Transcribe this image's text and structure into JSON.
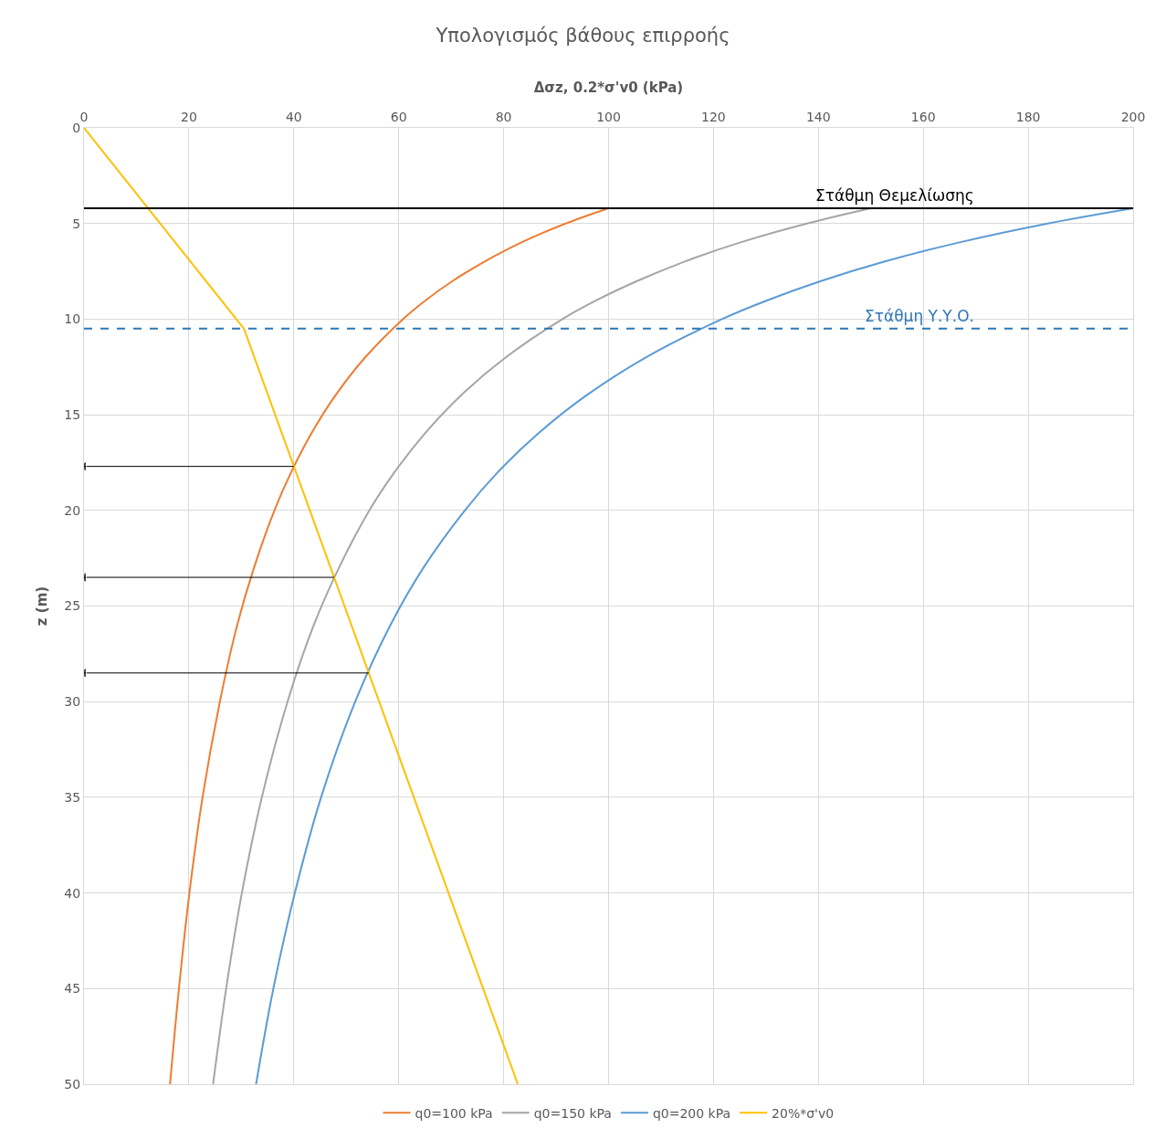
{
  "chart_data": {
    "type": "line",
    "title": "Υπολογισμός βάθους επιρροής",
    "xlabel": "Δσz, 0.2*σ'v0 (kPa)",
    "ylabel": "z (m)",
    "xlim": [
      0,
      200
    ],
    "xticks": [
      0,
      20,
      40,
      60,
      80,
      100,
      120,
      140,
      160,
      180,
      200
    ],
    "ylim": [
      50,
      0
    ],
    "yticks": [
      0,
      5,
      10,
      15,
      20,
      25,
      30,
      35,
      40,
      45,
      50
    ],
    "grid": true,
    "legend": "bottom",
    "marker": "none",
    "line_style": "solid",
    "series": [
      {
        "name": "q0=100 kPa",
        "color": "#ed7d31",
        "values": [
          4.2,
          5,
          6,
          7,
          8,
          9,
          10,
          12,
          14,
          16,
          18,
          20,
          23,
          26,
          30,
          35,
          40,
          45,
          50
        ],
        "x": [
          100,
          91.8,
          83.3,
          76.3,
          70.3,
          65.2,
          60.8,
          53.6,
          47.9,
          43.3,
          39.5,
          36.3,
          32.4,
          29.2,
          25.9,
          22.6,
          20.1,
          18.1,
          16.4
        ]
      },
      {
        "name": "q0=150 kPa",
        "color": "#a5a5a5",
        "values": [
          4.2,
          5,
          6,
          7,
          8,
          9,
          10,
          12,
          14,
          16,
          18,
          20,
          23,
          26,
          30,
          35,
          40,
          45,
          50
        ],
        "x": [
          150,
          137.8,
          125,
          114.4,
          105.5,
          97.8,
          91.2,
          80.4,
          71.8,
          64.9,
          59.2,
          54.4,
          48.6,
          43.8,
          38.8,
          33.9,
          30.1,
          27.1,
          24.6
        ]
      },
      {
        "name": "q0=200 kPa",
        "color": "#5b9bd5",
        "values": [
          4.2,
          5,
          6,
          7,
          8,
          9,
          10,
          12,
          14,
          16,
          18,
          20,
          23,
          26,
          30,
          35,
          40,
          45,
          50
        ],
        "x": [
          200,
          183.7,
          166.7,
          152.5,
          140.6,
          130.4,
          121.6,
          107.1,
          95.7,
          86.5,
          78.9,
          72.6,
          64.7,
          58.4,
          51.7,
          45.2,
          40.2,
          36.1,
          32.8
        ]
      },
      {
        "name": "20%*σ'v0",
        "color": "#ffc000",
        "values": [
          0,
          10.5,
          50
        ],
        "x": [
          0,
          30.5,
          82.7
        ]
      },
      {
        "color": "#000000",
        "values": [
          17.7,
          17.7
        ],
        "x": [
          40,
          0
        ],
        "marker": "triangle"
      },
      {
        "color": "#000000",
        "values": [
          23.5,
          23.5
        ],
        "x": [
          47.7,
          0
        ],
        "marker": "triangle"
      },
      {
        "color": "#000000",
        "values": [
          28.5,
          28.5
        ],
        "x": [
          54.3,
          0
        ],
        "marker": "triangle"
      }
    ],
    "ref_lines": [
      {
        "axis": "y",
        "value": 4.2,
        "label": "Στάθμη Θεμελίωσης",
        "color": "#000000",
        "line_style": "solid"
      },
      {
        "axis": "y",
        "value": 10.5,
        "label": "Στάθμη Υ.Υ.Ο.",
        "color": "#2e75b6",
        "line_style": "dashed"
      }
    ]
  }
}
